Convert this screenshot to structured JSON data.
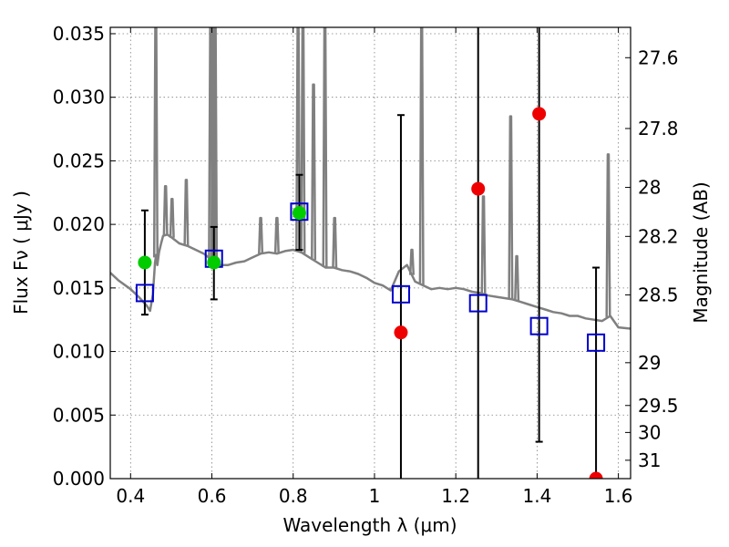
{
  "chart_data": {
    "type": "scatter",
    "title": "",
    "xlabel": "Wavelength  λ (μm)",
    "ylabel": "Flux  Fν  ( μJy )",
    "ylabel_right": "Magnitude (AB)",
    "xlim": [
      0.35,
      1.63
    ],
    "ylim": [
      0,
      0.0355
    ],
    "x_ticks": [
      0.4,
      0.6,
      0.8,
      1.0,
      1.2,
      1.4,
      1.6
    ],
    "x_tick_labels": [
      "0.4",
      "0.6",
      "0.8",
      "1",
      "1.2",
      "1.4",
      "1.6"
    ],
    "y_ticks": [
      0,
      0.005,
      0.01,
      0.015,
      0.02,
      0.025,
      0.03,
      0.035
    ],
    "y_tick_labels": [
      "0.000",
      "0.005",
      "0.010",
      "0.015",
      "0.020",
      "0.025",
      "0.030",
      "0.035"
    ],
    "right_ticks": [
      27.6,
      27.8,
      28,
      28.2,
      28.5,
      29,
      29.5,
      30,
      31
    ],
    "right_tick_labels": [
      "27.6",
      "27.8",
      "28",
      "28.2",
      "28.5",
      "29",
      "29.5",
      "30",
      "31"
    ],
    "grid": true,
    "colors": {
      "model": "#808080",
      "observed": "#00cc00",
      "upper": "#ee0000",
      "synthetic": "#0000cc",
      "errorbar": "#000000"
    },
    "series": [
      {
        "kind": "model-spectrum",
        "x": [
          0.35,
          0.37,
          0.4,
          0.42,
          0.44,
          0.448,
          0.455,
          0.46,
          0.463,
          0.466,
          0.47,
          0.475,
          0.48,
          0.49,
          0.5,
          0.52,
          0.54,
          0.56,
          0.58,
          0.6,
          0.62,
          0.64,
          0.66,
          0.68,
          0.7,
          0.72,
          0.74,
          0.76,
          0.78,
          0.8,
          0.82,
          0.84,
          0.86,
          0.88,
          0.9,
          0.92,
          0.94,
          0.96,
          0.98,
          1.0,
          1.02,
          1.04,
          1.06,
          1.08,
          1.1,
          1.12,
          1.14,
          1.16,
          1.18,
          1.2,
          1.22,
          1.24,
          1.26,
          1.28,
          1.3,
          1.32,
          1.34,
          1.36,
          1.38,
          1.4,
          1.42,
          1.44,
          1.46,
          1.48,
          1.5,
          1.52,
          1.54,
          1.56,
          1.58,
          1.6,
          1.63
        ],
        "y": [
          0.0162,
          0.0156,
          0.0149,
          0.0143,
          0.0136,
          0.0132,
          0.0145,
          0.017,
          0.0176,
          0.0168,
          0.0178,
          0.0185,
          0.0191,
          0.0192,
          0.019,
          0.0185,
          0.0183,
          0.018,
          0.0177,
          0.0172,
          0.0168,
          0.0168,
          0.017,
          0.0171,
          0.0174,
          0.0177,
          0.0178,
          0.0177,
          0.0179,
          0.018,
          0.0178,
          0.0174,
          0.017,
          0.0166,
          0.0166,
          0.0164,
          0.0163,
          0.0161,
          0.0158,
          0.0154,
          0.0152,
          0.0148,
          0.0163,
          0.0168,
          0.0155,
          0.0152,
          0.0149,
          0.015,
          0.0149,
          0.015,
          0.0149,
          0.0147,
          0.0146,
          0.0144,
          0.0143,
          0.0142,
          0.0141,
          0.0139,
          0.0137,
          0.0135,
          0.0133,
          0.0131,
          0.013,
          0.0128,
          0.0128,
          0.0126,
          0.0125,
          0.0124,
          0.0128,
          0.0119,
          0.0118
        ]
      },
      {
        "kind": "emission-lines",
        "x": [
          0.462,
          0.486,
          0.502,
          0.537,
          0.597,
          0.603,
          0.608,
          0.72,
          0.76,
          0.812,
          0.824,
          0.85,
          0.878,
          0.902,
          1.092,
          1.116,
          1.268,
          1.335,
          1.35,
          1.575
        ],
        "y_peak": [
          0.0355,
          0.023,
          0.022,
          0.0235,
          0.0355,
          0.0355,
          0.0355,
          0.0205,
          0.0205,
          0.0355,
          0.0355,
          0.031,
          0.0355,
          0.0205,
          0.018,
          0.0355,
          0.0222,
          0.0285,
          0.0175,
          0.0255
        ]
      },
      {
        "kind": "observed",
        "x": [
          0.435,
          0.605,
          0.815
        ],
        "y": [
          0.017,
          0.017,
          0.0209
        ],
        "yerr_low": [
          0.0129,
          0.0141,
          0.018
        ],
        "yerr_high": [
          0.0211,
          0.0198,
          0.0239
        ]
      },
      {
        "kind": "upper-limit",
        "x": [
          1.065,
          1.255,
          1.405,
          1.545
        ],
        "y": [
          0.0115,
          0.0228,
          0.0287,
          0.0
        ],
        "yerr_low": [
          0.0,
          0.0,
          0.0029,
          0.0
        ],
        "yerr_high": [
          0.0286,
          0.0355,
          0.0355,
          0.0166
        ]
      },
      {
        "kind": "synthetic-photometry",
        "x": [
          0.435,
          0.605,
          0.815,
          1.065,
          1.255,
          1.405,
          1.545
        ],
        "y": [
          0.0146,
          0.0173,
          0.021,
          0.0145,
          0.0138,
          0.012,
          0.0107
        ]
      }
    ]
  }
}
